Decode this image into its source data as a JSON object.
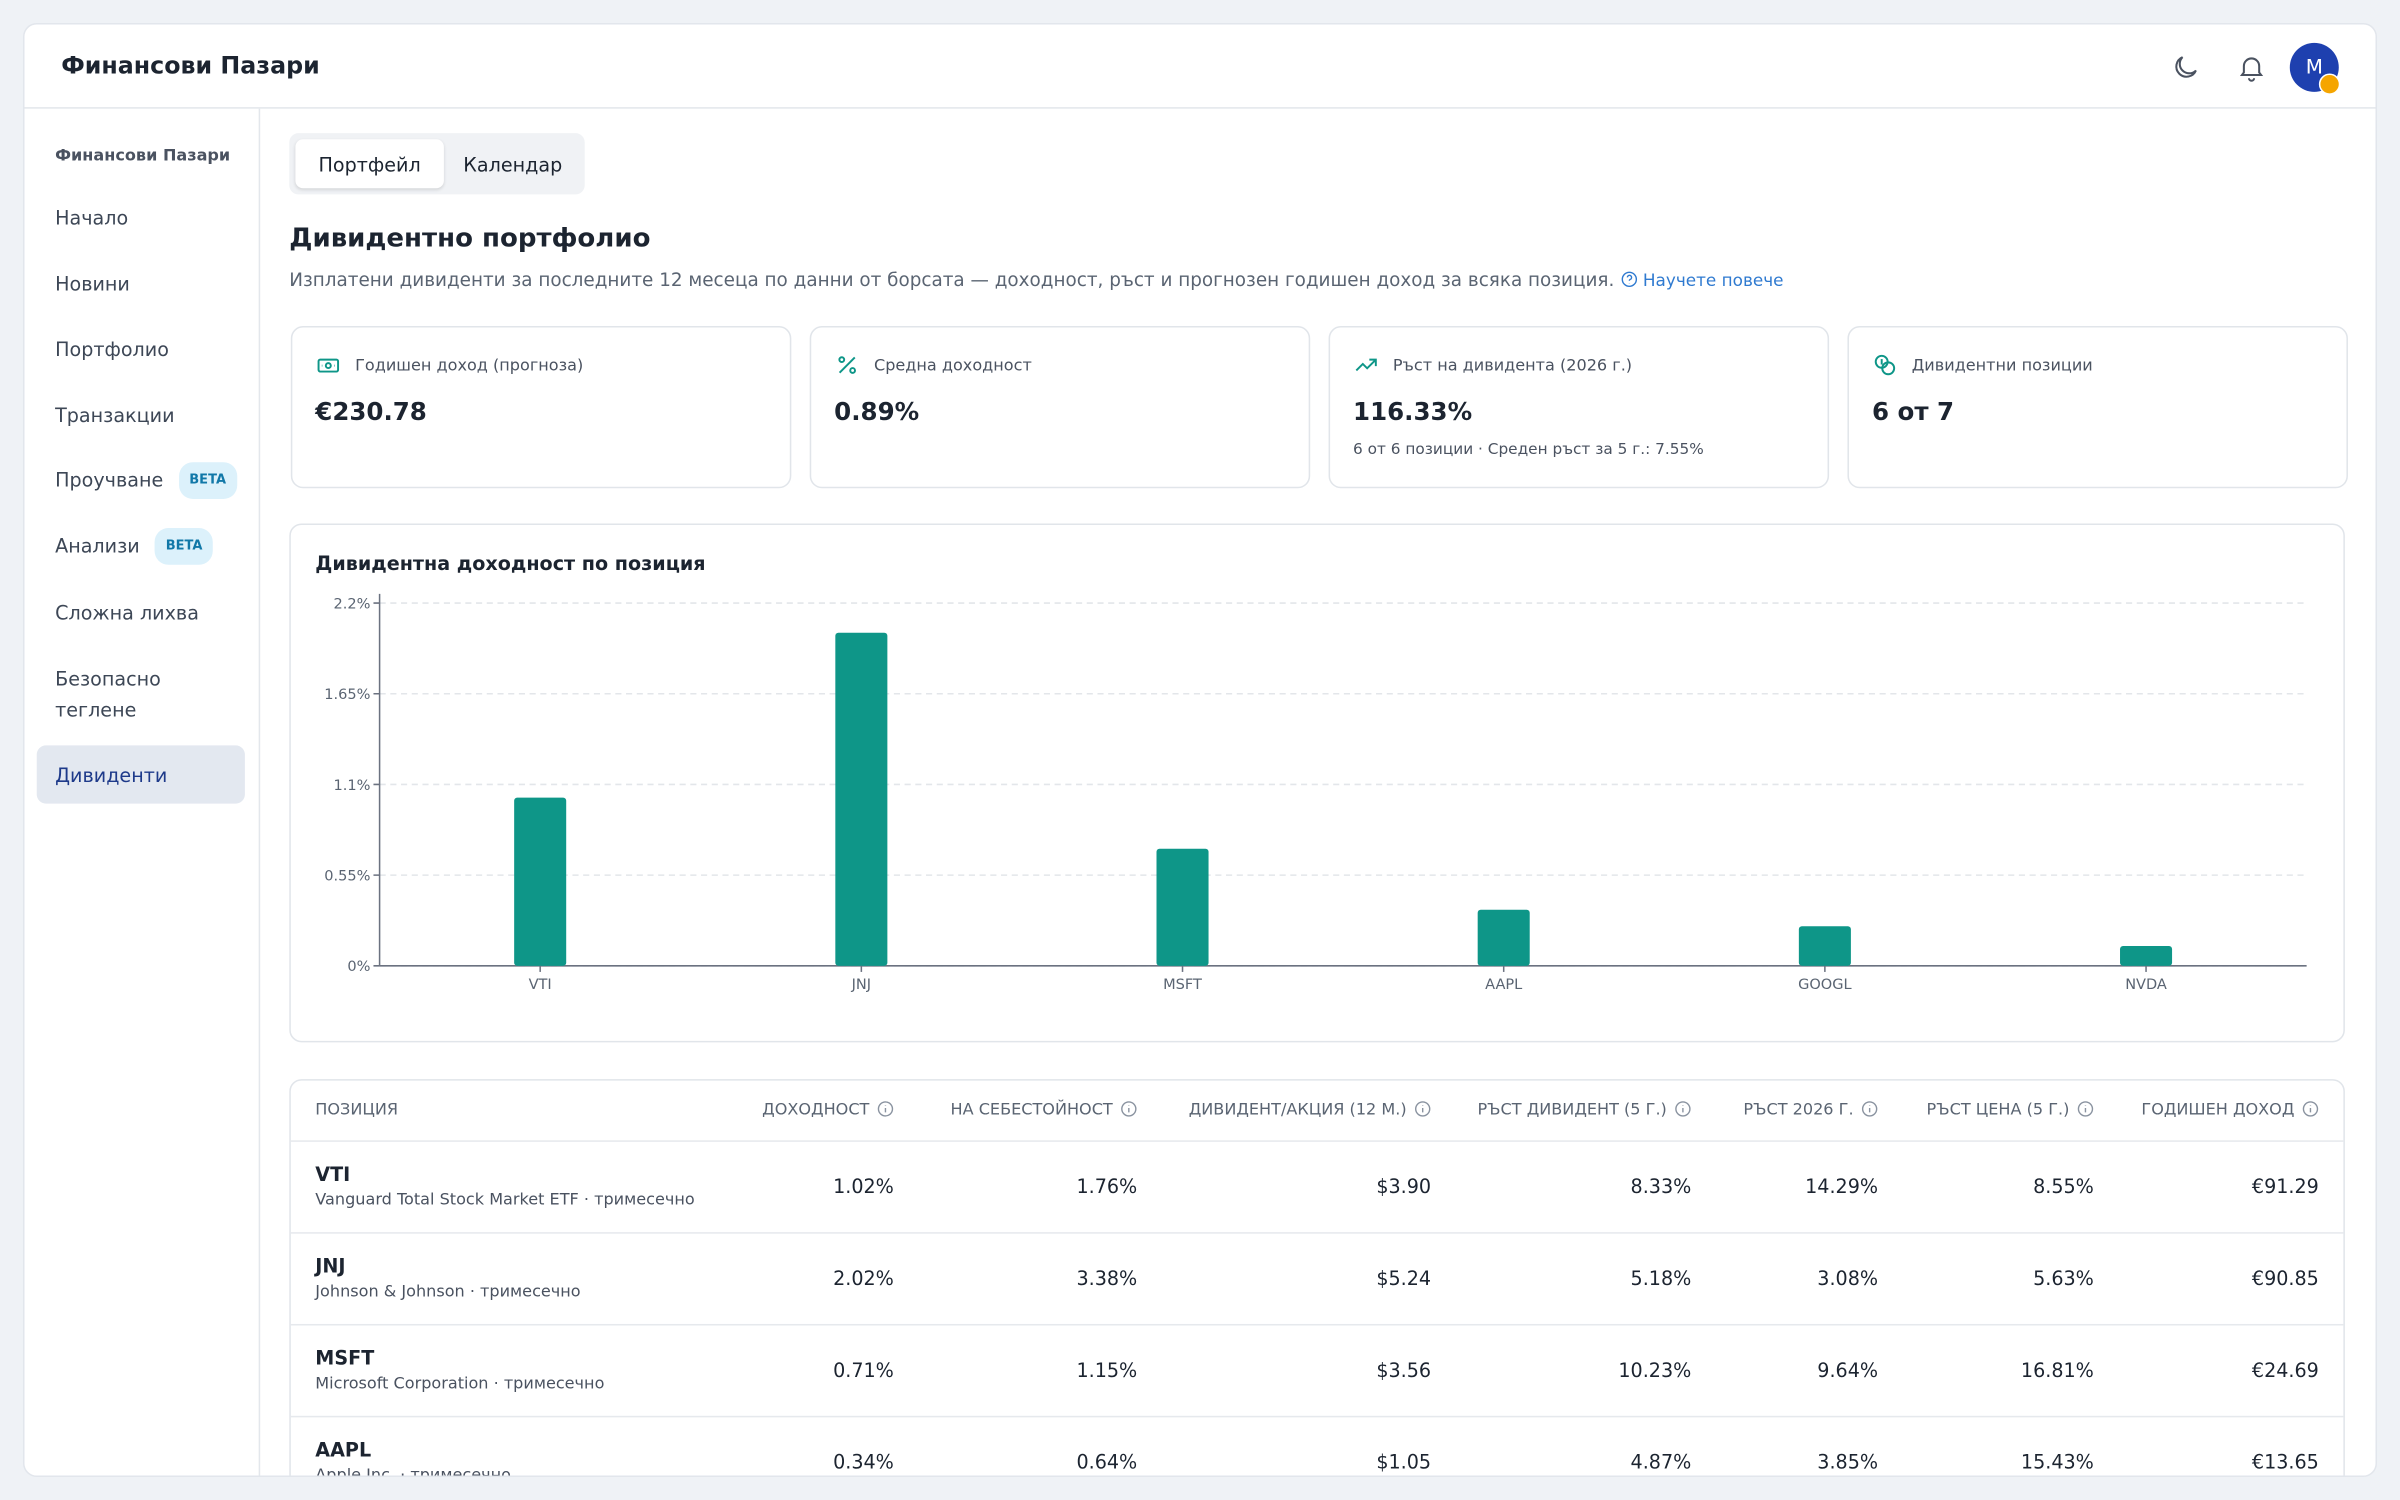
{
  "header": {
    "title": "Финансови Пазари"
  },
  "user": {
    "initial": "M"
  },
  "sidebar": {
    "section": "Финансови Пазари",
    "items": [
      {
        "label": "Начало"
      },
      {
        "label": "Новини"
      },
      {
        "label": "Портфолио"
      },
      {
        "label": "Транзакции"
      },
      {
        "label": "Проучване",
        "badge": "BETA"
      },
      {
        "label": "Анализи",
        "badge": "BETA"
      },
      {
        "label": "Сложна лихва"
      },
      {
        "label": "Безопасно теглене"
      },
      {
        "label": "Дивиденти",
        "active": true
      }
    ]
  },
  "tabs": [
    "Портфейл",
    "Календар"
  ],
  "page": {
    "title": "Дивидентно портфолио",
    "subtitle": "Изплатени дивиденти за последните 12 месеца по данни от борсата — доходност, ръст и прогнозен годишен доход за всяка позиция.",
    "link": "Научете повече"
  },
  "cards": [
    {
      "label": "Годишен доход (прогноза)",
      "value": "€230.78"
    },
    {
      "label": "Средна доходност",
      "value": "0.89%"
    },
    {
      "label": "Ръст на дивидента (2026 г.)",
      "value": "116.33%",
      "note": "6 от 6 позиции · Среден ръст за 5 г.: 7.55%"
    },
    {
      "label": "Дивидентни позиции",
      "value": "6 от 7"
    }
  ],
  "chart": {
    "type": "bar",
    "title": "Дивидентна доходност по позиция",
    "categories": [
      "VTI",
      "JNJ",
      "MSFT",
      "AAPL",
      "GOOGL",
      "NVDA"
    ],
    "values": [
      1.02,
      2.02,
      0.71,
      0.34,
      0.24,
      0.12
    ],
    "color": "#0e9688",
    "ylim": [
      0,
      2.2
    ],
    "yticks": [
      {
        "value": 0,
        "label": "0%"
      },
      {
        "value": 0.55,
        "label": "0.55%"
      },
      {
        "value": 1.1,
        "label": "1.1%"
      },
      {
        "value": 1.65,
        "label": "1.65%"
      },
      {
        "value": 2.2,
        "label": "2.2%"
      }
    ],
    "grid": true
  },
  "table": {
    "columns": [
      "ПОЗИЦИЯ",
      "ДОХОДНОСТ",
      "НА СЕБЕСТОЙНОСТ",
      "ДИВИДЕНТ/АКЦИЯ (12 М.)",
      "РЪСТ ДИВИДЕНТ (5 Г.)",
      "РЪСТ 2026 Г.",
      "РЪСТ ЦЕНА (5 Г.)",
      "ГОДИШЕН ДОХОД"
    ],
    "rows": [
      {
        "ticker": "VTI",
        "name": "Vanguard Total Stock Market ETF · тримесечно",
        "cells": [
          "1.02%",
          "1.76%",
          "$3.90",
          "8.33%",
          "14.29%",
          "8.55%",
          "€91.29"
        ]
      },
      {
        "ticker": "JNJ",
        "name": "Johnson & Johnson · тримесечно",
        "cells": [
          "2.02%",
          "3.38%",
          "$5.24",
          "5.18%",
          "3.08%",
          "5.63%",
          "€90.85"
        ]
      },
      {
        "ticker": "MSFT",
        "name": "Microsoft Corporation · тримесечно",
        "cells": [
          "0.71%",
          "1.15%",
          "$3.56",
          "10.23%",
          "9.64%",
          "16.81%",
          "€24.69"
        ]
      },
      {
        "ticker": "AAPL",
        "name": "Apple Inc. · тримесечно",
        "cells": [
          "0.34%",
          "0.64%",
          "$1.05",
          "4.87%",
          "3.85%",
          "15.43%",
          "€13.65"
        ]
      }
    ]
  }
}
